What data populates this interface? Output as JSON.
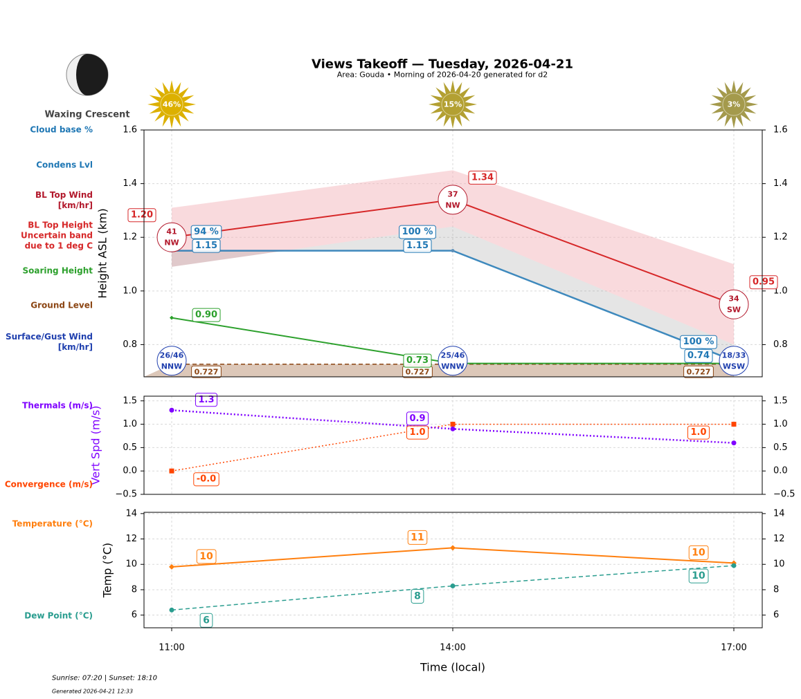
{
  "header": {
    "title": "Views Takeoff — Tuesday, 2026-04-21",
    "subtitle": "Area: Gouda • Morning of 2026-04-20 generated for d2",
    "moon_phase": "Waxing Crescent"
  },
  "sun": {
    "values": [
      46,
      15,
      3
    ],
    "value_labels": [
      "46%",
      "15%",
      "3%"
    ],
    "colors": [
      "#dcb000",
      "#b3a032",
      "#a49a4c"
    ]
  },
  "chart_data": [
    {
      "type": "line",
      "ylabel": "Height ASL (km)",
      "ylim": [
        0.68,
        1.6
      ],
      "yticks": [
        0.8,
        {
          "value": 1,
          "label": "1.0"
        },
        1.2,
        1.4,
        1.6
      ],
      "grid": true,
      "series": [
        {
          "name": "Cloud base %",
          "color": "#1f77b4",
          "values": [
            94,
            100,
            100
          ],
          "value_labels": [
            "94 %",
            "100 %",
            "100 %"
          ]
        },
        {
          "name": "Condens Lvl",
          "color": "#1f77b4",
          "values": [
            1.15,
            1.15,
            0.74
          ]
        },
        {
          "name": "BL Top Wind\n[km/hr]",
          "color": "#b2182b",
          "values": [
            41,
            37,
            34
          ],
          "directions": [
            "NW",
            "NW",
            "SW"
          ]
        },
        {
          "name": "BL Top Height\nUncertain band\ndue to 1 deg C",
          "color": "#d62728",
          "values": [
            1.2,
            1.34,
            0.95
          ],
          "value_labels": [
            "1.20",
            "1.34",
            "0.95"
          ],
          "band_upper": [
            1.31,
            1.45,
            1.1
          ],
          "band_lower": [
            1.09,
            1.24,
            0.8
          ],
          "band_color": "#f4b6bb"
        },
        {
          "name": "Soaring Height",
          "color": "#2ca02c",
          "values": [
            0.9,
            0.73,
            0.73
          ],
          "value_labels": [
            "0.90",
            "0.73",
            null
          ],
          "marker": "diamond"
        },
        {
          "name": "Ground Level",
          "color": "#8b4513",
          "values": [
            0.727,
            0.727,
            0.727
          ],
          "line_style": "dashed"
        },
        {
          "name": "Surface/Gust Wind\n[km/hr]",
          "color": "#1f3fae",
          "values": [
            26,
            25,
            18
          ],
          "gusts": [
            46,
            46,
            33
          ],
          "directions": [
            "NNW",
            "WNW",
            "WSW"
          ],
          "value_labels": [
            "26/46",
            "25/46",
            "18/33"
          ]
        }
      ]
    },
    {
      "type": "line",
      "ylabel": "Vert Spd (m/s)",
      "ylabel_color": "#7f00ff",
      "ylim": [
        -0.5,
        1.6
      ],
      "yticks": [
        {
          "value": -0.5,
          "label": "−0.5"
        },
        {
          "value": 0,
          "label": "0.0"
        },
        0.5,
        {
          "value": 1,
          "label": "1.0"
        },
        1.5
      ],
      "grid": true,
      "series": [
        {
          "name": "Thermals (m/s)",
          "color": "#7f00ff",
          "values": [
            1.3,
            0.9,
            0.6
          ],
          "value_labels": [
            "1.3",
            "0.9",
            null
          ],
          "line_style": "dotted",
          "marker": "circle"
        },
        {
          "name": "Convergence (m/s)",
          "color": "#ff4500",
          "values": [
            0,
            1,
            1
          ],
          "value_labels": [
            "-0.0",
            "1.0",
            "1.0"
          ],
          "line_style": "dotted",
          "marker": "square"
        }
      ]
    },
    {
      "type": "line",
      "ylabel": "Temp (°C)",
      "xlabel": "Time (local)",
      "categories": [
        "11:00",
        "14:00",
        "17:00"
      ],
      "ylim": [
        5,
        14.1
      ],
      "yticks": [
        6,
        8,
        10,
        12,
        14
      ],
      "grid": true,
      "series": [
        {
          "name": "Temperature (°C)",
          "color": "#ff7f0e",
          "values": [
            9.8,
            11.3,
            10.1
          ],
          "value_labels": [
            "10",
            "11",
            "10"
          ],
          "marker": "diamond"
        },
        {
          "name": "Dew Point (°C)",
          "color": "#2a9d8f",
          "values": [
            6.4,
            8.3,
            9.9
          ],
          "value_labels": [
            "6",
            "8",
            "10"
          ],
          "line_style": "dashed",
          "marker": "circle"
        }
      ]
    }
  ],
  "footer": {
    "sun_times": "Sunrise: 07:20 | Sunset: 18:10",
    "generated": "Generated 2026-04-21 12:33"
  }
}
